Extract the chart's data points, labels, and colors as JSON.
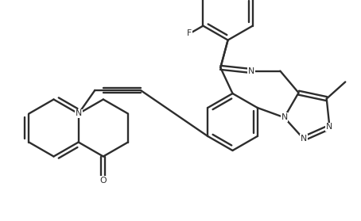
{
  "line_color": "#2d2d2d",
  "bg_color": "#ffffff",
  "lw": 1.7,
  "figsize": [
    4.54,
    2.79
  ],
  "dpi": 100,
  "xlim": [
    0,
    9.08
  ],
  "ylim": [
    0,
    5.58
  ]
}
